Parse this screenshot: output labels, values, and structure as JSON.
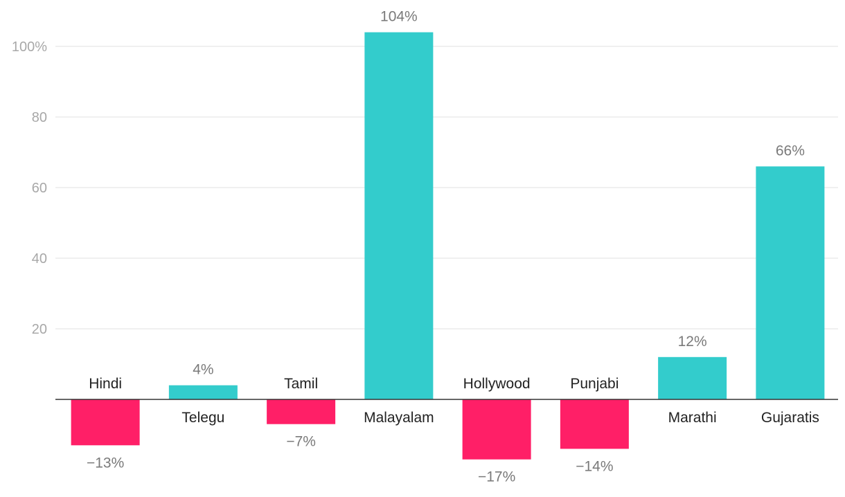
{
  "chart_data": {
    "type": "bar",
    "title": "",
    "xlabel": "",
    "ylabel": "",
    "ylim": [
      -20,
      100
    ],
    "yticks": [
      20,
      40,
      60,
      80,
      100
    ],
    "ytick_labels": [
      "20",
      "40",
      "60",
      "80",
      "100%"
    ],
    "grid": true,
    "categories": [
      "Hindi",
      "Telegu",
      "Tamil",
      "Malayalam",
      "Hollywood",
      "Punjabi",
      "Marathi",
      "Gujaratis"
    ],
    "values": [
      -13,
      4,
      -7,
      104,
      -17,
      -14,
      12,
      66
    ],
    "data_labels": [
      "−13%",
      "4%",
      "−7%",
      "104%",
      "−17%",
      "−14%",
      "12%",
      "66%"
    ],
    "colors": {
      "positive": "#33cccc",
      "negative": "#ff1f67"
    }
  }
}
